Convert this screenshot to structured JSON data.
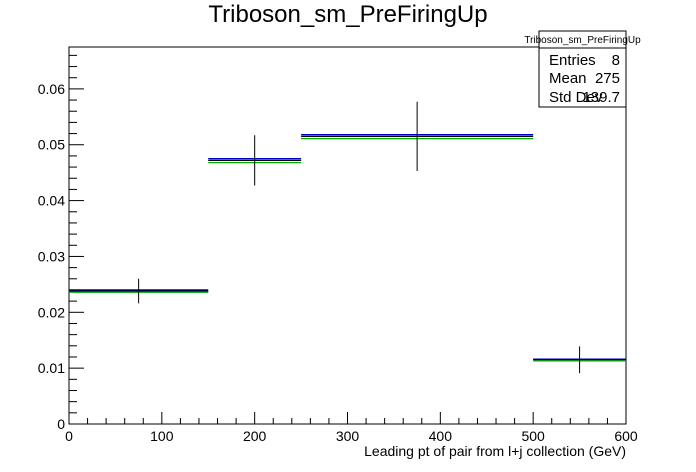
{
  "chart_data": {
    "type": "histogram",
    "title": "Triboson_sm_PreFiringUp",
    "xlabel": "Leading pt of pair from l+j collection (GeV)",
    "ylabel": "",
    "xlim": [
      0,
      600
    ],
    "ylim": [
      0,
      0.0675
    ],
    "x_ticks": [
      "0",
      "100",
      "200",
      "300",
      "400",
      "500",
      "600"
    ],
    "y_ticks": [
      "0",
      "0.01",
      "0.02",
      "0.03",
      "0.04",
      "0.05",
      "0.06"
    ],
    "grid": false,
    "bins": [
      {
        "x_low": 0,
        "x_high": 150,
        "x_center": 75,
        "value": 0.0238,
        "error": 0.0022
      },
      {
        "x_low": 150,
        "x_high": 250,
        "x_center": 200,
        "value": 0.0472,
        "error": 0.0045
      },
      {
        "x_low": 250,
        "x_high": 500,
        "x_center": 375,
        "value": 0.0515,
        "error": 0.0062
      },
      {
        "x_low": 500,
        "x_high": 600,
        "x_center": 550,
        "value": 0.0115,
        "error": 0.0024
      }
    ],
    "variation_lines": [
      {
        "color": "#0000cc",
        "values": [
          0.024,
          0.0475,
          0.0518,
          0.0116
        ]
      },
      {
        "color": "#000000",
        "values": [
          0.0238,
          0.0472,
          0.0515,
          0.0115
        ]
      },
      {
        "color": "#00aa00",
        "values": [
          0.0236,
          0.0468,
          0.0511,
          0.0113
        ]
      }
    ],
    "stats_box": {
      "title": "Triboson_sm_PreFiringUp",
      "rows": [
        {
          "label": "Entries",
          "value": "8"
        },
        {
          "label": "Mean",
          "value": "275"
        },
        {
          "label": "Std Dev",
          "value": "139.7"
        }
      ],
      "placement": "top-right"
    }
  }
}
